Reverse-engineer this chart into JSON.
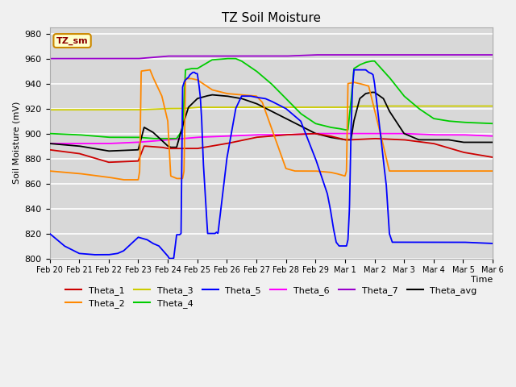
{
  "title": "TZ Soil Moisture",
  "xlabel": "Time",
  "ylabel": "Soil Moisture (mV)",
  "ylim": [
    800,
    985
  ],
  "yticks": [
    800,
    820,
    840,
    860,
    880,
    900,
    920,
    940,
    960,
    980
  ],
  "bg_color": "#d8d8d8",
  "fig_color": "#f0f0f0",
  "legend_box_label": "TZ_sm",
  "series_colors": {
    "Theta_1": "#cc0000",
    "Theta_2": "#ff8800",
    "Theta_3": "#cccc00",
    "Theta_4": "#00cc00",
    "Theta_5": "#0000ff",
    "Theta_6": "#ff00ff",
    "Theta_7": "#9900cc",
    "Theta_avg": "#000000"
  }
}
